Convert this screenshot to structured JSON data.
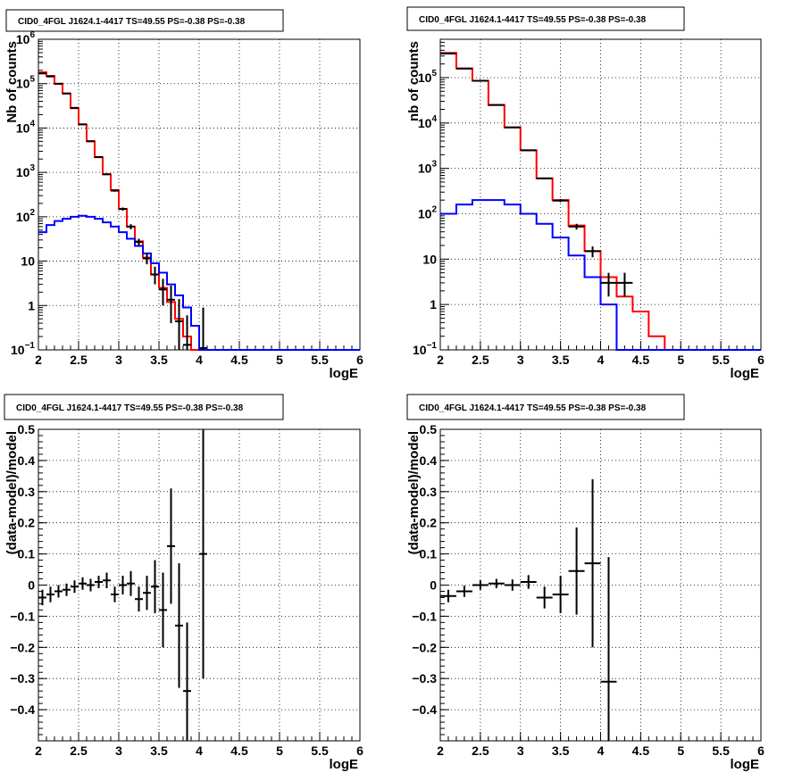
{
  "chart_data": [
    {
      "type": "histogram",
      "title": "CID0_4FGL J1624.1-4417 TS=49.55 PS=-0.38 PS=-0.38",
      "xlabel": "logE",
      "ylabel": "Nb of counts",
      "xlim": [
        2,
        6
      ],
      "ylim": [
        0.1,
        1000000
      ],
      "yscale": "log",
      "grid": true,
      "x_ticks": [
        "2",
        "2.5",
        "3",
        "3.5",
        "4",
        "4.5",
        "5",
        "5.5",
        "6"
      ],
      "y_ticks": [
        "10^-1",
        "1",
        "10",
        "10^2",
        "10^3",
        "10^4",
        "10^5",
        "10^6"
      ],
      "bin_edges": [
        2.0,
        2.1,
        2.2,
        2.3,
        2.4,
        2.5,
        2.6,
        2.7,
        2.8,
        2.9,
        3.0,
        3.1,
        3.2,
        3.3,
        3.4,
        3.5,
        3.6,
        3.7,
        3.8,
        3.9,
        4.0,
        4.1,
        4.2,
        4.3,
        4.4,
        4.5,
        4.6,
        4.7,
        4.8,
        4.9,
        5.0,
        5.1,
        5.2,
        5.3,
        5.4,
        5.5,
        5.6,
        5.7,
        5.8,
        5.9,
        6.0
      ],
      "series": [
        {
          "color": "#ff0000",
          "style": "step",
          "values": [
            180000,
            150000,
            100000,
            60000,
            28000,
            12000,
            5000,
            2200,
            900,
            400,
            150,
            60,
            28,
            12,
            5,
            2.5,
            1.2,
            0.5,
            0.2,
            0.1,
            0.1,
            0.1,
            0.1,
            0.1,
            0.1,
            0.1,
            0.1,
            0.1,
            0.1,
            0.1,
            0.1,
            0.1,
            0.1,
            0.1,
            0.1,
            0.1,
            0.1,
            0.1,
            0.1,
            0.1
          ]
        },
        {
          "color": "#0000ff",
          "style": "step",
          "values": [
            45,
            65,
            80,
            90,
            100,
            105,
            100,
            90,
            75,
            60,
            45,
            32,
            22,
            15,
            9,
            5.5,
            3,
            1.7,
            0.9,
            0.35,
            0.1,
            0.1,
            0.1,
            0.1,
            0.1,
            0.1,
            0.1,
            0.1,
            0.1,
            0.1,
            0.1,
            0.1,
            0.1,
            0.1,
            0.1,
            0.1,
            0.1,
            0.1,
            0.1,
            0.1
          ]
        },
        {
          "color": "#000000",
          "style": "errorbar",
          "points": [
            {
              "x": 2.05,
              "y": 170000,
              "ylo": 168000,
              "yhi": 172000
            },
            {
              "x": 2.15,
              "y": 145000,
              "ylo": 143000,
              "yhi": 147000
            },
            {
              "x": 2.25,
              "y": 99000,
              "ylo": 98000,
              "yhi": 100000
            },
            {
              "x": 2.35,
              "y": 60000,
              "ylo": 59000,
              "yhi": 61000
            },
            {
              "x": 2.45,
              "y": 28500,
              "ylo": 28000,
              "yhi": 29000
            },
            {
              "x": 2.55,
              "y": 12100,
              "ylo": 11900,
              "yhi": 12300
            },
            {
              "x": 2.65,
              "y": 5050,
              "ylo": 4950,
              "yhi": 5150
            },
            {
              "x": 2.75,
              "y": 2220,
              "ylo": 2170,
              "yhi": 2270
            },
            {
              "x": 2.85,
              "y": 910,
              "ylo": 880,
              "yhi": 940
            },
            {
              "x": 2.95,
              "y": 388,
              "ylo": 368,
              "yhi": 408
            },
            {
              "x": 3.05,
              "y": 150,
              "ylo": 138,
              "yhi": 162
            },
            {
              "x": 3.15,
              "y": 60,
              "ylo": 52,
              "yhi": 68
            },
            {
              "x": 3.25,
              "y": 27,
              "ylo": 22,
              "yhi": 32
            },
            {
              "x": 3.35,
              "y": 11.5,
              "ylo": 8.5,
              "yhi": 15
            },
            {
              "x": 3.45,
              "y": 5,
              "ylo": 3,
              "yhi": 7.5
            },
            {
              "x": 3.55,
              "y": 2.3,
              "ylo": 1,
              "yhi": 4
            },
            {
              "x": 3.65,
              "y": 1.35,
              "ylo": 0.4,
              "yhi": 2.8
            },
            {
              "x": 3.75,
              "y": 0.44,
              "ylo": 0.1,
              "yhi": 1.4
            },
            {
              "x": 3.85,
              "y": 0.13,
              "ylo": 0.1,
              "yhi": 0.6
            },
            {
              "x": 4.05,
              "y": 0.11,
              "ylo": 0.1,
              "yhi": 0.9
            }
          ]
        }
      ]
    },
    {
      "type": "histogram",
      "title": "CID0_4FGL J1624.1-4417 TS=49.55 PS=-0.38 PS=-0.38",
      "xlabel": "logE",
      "ylabel": "nb of counts",
      "xlim": [
        2,
        6
      ],
      "ylim": [
        0.1,
        700000
      ],
      "yscale": "log",
      "grid": true,
      "x_ticks": [
        "2",
        "2.5",
        "3",
        "3.5",
        "4",
        "4.5",
        "5",
        "5.5",
        "6"
      ],
      "y_ticks": [
        "10^-1",
        "1",
        "10",
        "10^2",
        "10^3",
        "10^4",
        "10^5"
      ],
      "bin_edges": [
        2.0,
        2.2,
        2.4,
        2.6,
        2.8,
        3.0,
        3.2,
        3.4,
        3.6,
        3.8,
        4.0,
        4.2,
        4.4,
        4.6,
        4.8,
        5.0,
        5.2,
        5.4,
        5.6,
        5.8,
        6.0
      ],
      "series": [
        {
          "color": "#ff0000",
          "style": "step",
          "values": [
            350000,
            160000,
            85000,
            25000,
            8000,
            2500,
            600,
            200,
            55,
            15,
            4,
            1.5,
            0.7,
            0.2,
            0.1,
            0.1,
            0.1,
            0.1,
            0.1,
            0.1
          ]
        },
        {
          "color": "#0000ff",
          "style": "step",
          "values": [
            100,
            160,
            200,
            200,
            160,
            100,
            60,
            30,
            12,
            4,
            1,
            0.1,
            0.1,
            0.1,
            0.1,
            0.1,
            0.1,
            0.1,
            0.1,
            0.1
          ]
        },
        {
          "color": "#000000",
          "style": "errorbar",
          "points": [
            {
              "x": 2.1,
              "y": 340000,
              "ylo": 335000,
              "yhi": 345000
            },
            {
              "x": 2.3,
              "y": 158000,
              "ylo": 155000,
              "yhi": 161000
            },
            {
              "x": 2.5,
              "y": 85000,
              "ylo": 83000,
              "yhi": 87000
            },
            {
              "x": 2.7,
              "y": 25000,
              "ylo": 24500,
              "yhi": 25500
            },
            {
              "x": 2.9,
              "y": 8000,
              "ylo": 7800,
              "yhi": 8200
            },
            {
              "x": 3.1,
              "y": 2500,
              "ylo": 2400,
              "yhi": 2600
            },
            {
              "x": 3.3,
              "y": 600,
              "ylo": 570,
              "yhi": 630
            },
            {
              "x": 3.5,
              "y": 195,
              "ylo": 180,
              "yhi": 210
            },
            {
              "x": 3.7,
              "y": 52,
              "ylo": 45,
              "yhi": 60
            },
            {
              "x": 3.9,
              "y": 15,
              "ylo": 11,
              "yhi": 19
            },
            {
              "x": 4.1,
              "y": 3,
              "ylo": 1.5,
              "yhi": 5
            },
            {
              "x": 4.3,
              "y": 3,
              "ylo": 1.5,
              "yhi": 5
            }
          ]
        }
      ]
    },
    {
      "type": "errorbar",
      "title": "CID0_4FGL J1624.1-4417 TS=49.55 PS=-0.38 PS=-0.38",
      "xlabel": "logE",
      "ylabel": "(data-model)/model",
      "xlim": [
        2,
        6
      ],
      "ylim": [
        -0.5,
        0.5
      ],
      "grid": true,
      "x_ticks": [
        "2",
        "2.5",
        "3",
        "3.5",
        "4",
        "4.5",
        "5",
        "5.5",
        "6"
      ],
      "y_ticks": [
        "-0.5",
        "-0.4",
        "-0.3",
        "-0.2",
        "-0.1",
        "0",
        "0.1",
        "0.2",
        "0.3",
        "0.4",
        "0.5"
      ],
      "xerr": 0.05,
      "points": [
        {
          "x": 2.05,
          "y": -0.04,
          "err": 0.025
        },
        {
          "x": 2.15,
          "y": -0.03,
          "err": 0.025
        },
        {
          "x": 2.25,
          "y": -0.02,
          "err": 0.02
        },
        {
          "x": 2.35,
          "y": -0.015,
          "err": 0.02
        },
        {
          "x": 2.45,
          "y": -0.005,
          "err": 0.02
        },
        {
          "x": 2.55,
          "y": 0.005,
          "err": 0.02
        },
        {
          "x": 2.65,
          "y": 0.0,
          "err": 0.02
        },
        {
          "x": 2.75,
          "y": 0.01,
          "err": 0.02
        },
        {
          "x": 2.85,
          "y": 0.015,
          "err": 0.025
        },
        {
          "x": 2.95,
          "y": -0.03,
          "err": 0.025
        },
        {
          "x": 3.05,
          "y": 0.0,
          "err": 0.03
        },
        {
          "x": 3.15,
          "y": 0.005,
          "err": 0.04
        },
        {
          "x": 3.25,
          "y": -0.045,
          "err": 0.04
        },
        {
          "x": 3.35,
          "y": -0.025,
          "err": 0.055
        },
        {
          "x": 3.45,
          "y": -0.005,
          "err": 0.085
        },
        {
          "x": 3.55,
          "y": -0.08,
          "err": 0.12
        },
        {
          "x": 3.65,
          "y": 0.125,
          "err": 0.185
        },
        {
          "x": 3.75,
          "y": -0.13,
          "err": 0.2
        },
        {
          "x": 3.85,
          "y": -0.34,
          "err": 0.22
        },
        {
          "x": 4.05,
          "y": 0.1,
          "err": 0.4
        }
      ]
    },
    {
      "type": "errorbar",
      "title": "CID0_4FGL J1624.1-4417 TS=49.55 PS=-0.38 PS=-0.38",
      "xlabel": "logE",
      "ylabel": "(data-model)/model",
      "xlim": [
        2,
        6
      ],
      "ylim": [
        -0.5,
        0.5
      ],
      "grid": true,
      "x_ticks": [
        "2",
        "2.5",
        "3",
        "3.5",
        "4",
        "4.5",
        "5",
        "5.5",
        "6"
      ],
      "y_ticks": [
        "-0.5",
        "-0.4",
        "-0.3",
        "-0.2",
        "-0.1",
        "0",
        "0.1",
        "0.2",
        "0.3",
        "0.4",
        "0.5"
      ],
      "xerr": 0.1,
      "points": [
        {
          "x": 2.1,
          "y": -0.035,
          "err": 0.02
        },
        {
          "x": 2.3,
          "y": -0.02,
          "err": 0.018
        },
        {
          "x": 2.5,
          "y": 0.0,
          "err": 0.015
        },
        {
          "x": 2.7,
          "y": 0.005,
          "err": 0.015
        },
        {
          "x": 2.9,
          "y": 0.0,
          "err": 0.018
        },
        {
          "x": 3.1,
          "y": 0.01,
          "err": 0.022
        },
        {
          "x": 3.3,
          "y": -0.04,
          "err": 0.035
        },
        {
          "x": 3.5,
          "y": -0.03,
          "err": 0.06
        },
        {
          "x": 3.7,
          "y": 0.045,
          "err": 0.14
        },
        {
          "x": 3.9,
          "y": 0.07,
          "err": 0.27
        },
        {
          "x": 4.1,
          "y": -0.31,
          "err": 0.4
        }
      ]
    }
  ]
}
